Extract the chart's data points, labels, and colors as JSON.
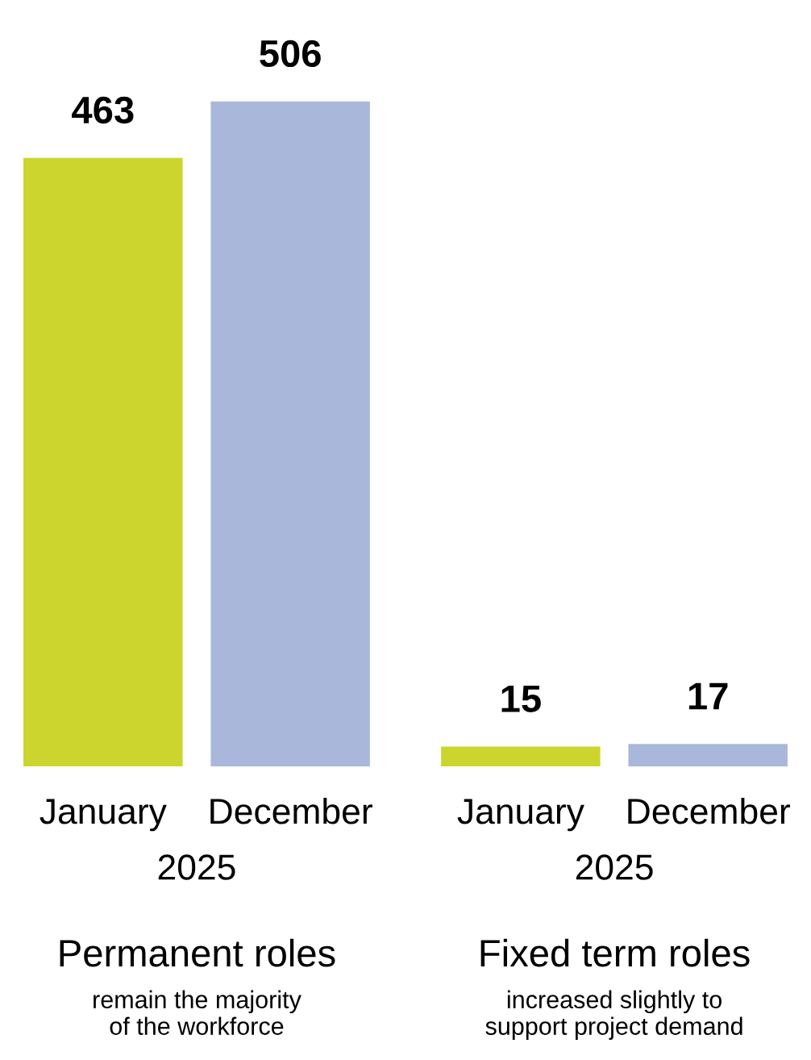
{
  "chart_data": [
    {
      "type": "bar",
      "title": "Permanent roles",
      "subtitle": "remain the majority\nof the workforce",
      "xlabel": "2025",
      "categories": [
        "January",
        "December"
      ],
      "values": [
        463,
        506
      ],
      "colors": [
        "#cbd52e",
        "#a9b8da"
      ],
      "data_labels": true
    },
    {
      "type": "bar",
      "title": "Fixed term roles",
      "subtitle": "increased slightly to\nsupport project demand",
      "xlabel": "2025",
      "categories": [
        "January",
        "December"
      ],
      "values": [
        15,
        17
      ],
      "colors": [
        "#cbd52e",
        "#a9b8da"
      ],
      "data_labels": true
    }
  ]
}
